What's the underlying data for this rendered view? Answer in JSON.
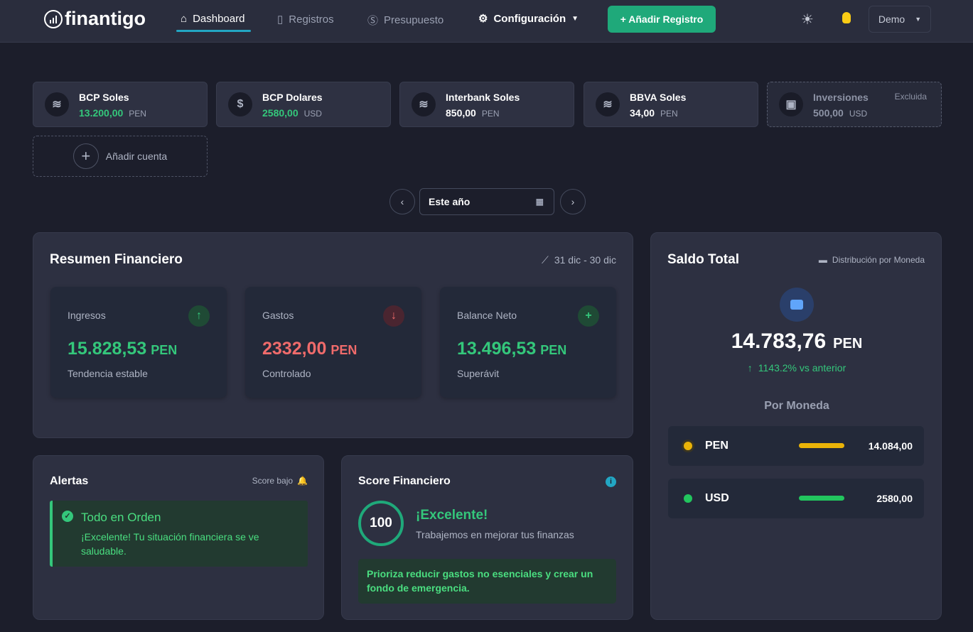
{
  "header": {
    "logo": "finantigo",
    "nav": [
      {
        "label": "Dashboard",
        "icon": "home-icon",
        "active": true
      },
      {
        "label": "Registros",
        "icon": "clipboard-icon"
      },
      {
        "label": "Presupuesto",
        "icon": "dollar-circle-icon"
      },
      {
        "label": "Configuración",
        "icon": "gear-icon"
      }
    ],
    "add_label": "+ Añadir Registro",
    "user": "Demo"
  },
  "accounts": [
    {
      "name": "BCP Soles",
      "amount": "13.200,00",
      "currency": "PEN",
      "icon": "coins-icon"
    },
    {
      "name": "BCP Dolares",
      "amount": "2580,00",
      "currency": "USD",
      "icon": "dollar-icon"
    },
    {
      "name": "Interbank Soles",
      "amount": "850,00",
      "currency": "PEN",
      "icon": "coins-icon"
    },
    {
      "name": "BBVA Soles",
      "amount": "34,00",
      "currency": "PEN",
      "icon": "coins-icon"
    },
    {
      "name": "Inversiones",
      "amount": "500,00",
      "currency": "USD",
      "icon": "wallet-icon",
      "badge": "Excluida"
    }
  ],
  "add_account": "Añadir cuenta",
  "period": "Este año",
  "summary": {
    "title": "Resumen Financiero",
    "range": "31 dic - 30 dic",
    "cards": [
      {
        "label": "Ingresos",
        "value": "15.828,53",
        "currency": "PEN",
        "sub": "Tendencia estable",
        "color": "#34c77b"
      },
      {
        "label": "Gastos",
        "value": "2332,00",
        "currency": "PEN",
        "sub": "Controlado",
        "color": "#f06b6b"
      },
      {
        "label": "Balance Neto",
        "value": "13.496,53",
        "currency": "PEN",
        "sub": "Superávit",
        "color": "#34c77b"
      }
    ]
  },
  "alerts": {
    "title": "Alertas",
    "badge": "Score bajo",
    "heading": "Todo en Orden",
    "text": "¡Excelente! Tu situación financiera se ve saludable."
  },
  "score": {
    "title": "Score Financiero",
    "value": "100",
    "heading": "¡Excelente!",
    "sub": "Trabajemos en mejorar tus finanzas",
    "tip": "Prioriza reducir gastos no esenciales y crear un fondo de emergencia."
  },
  "balance": {
    "title": "Saldo Total",
    "link": "Distribución por Moneda",
    "total": "14.783,76",
    "currency": "PEN",
    "change": "1143.2% vs anterior",
    "by_currency_title": "Por Moneda",
    "currencies": [
      {
        "code": "PEN",
        "value": "14.084,00",
        "color": "#eab308"
      },
      {
        "code": "USD",
        "value": "2580,00",
        "color": "#22c55e"
      }
    ]
  }
}
